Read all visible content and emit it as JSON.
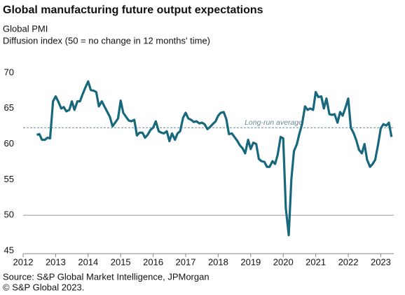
{
  "chart_data": {
    "type": "line",
    "title": "Global manufacturing future output expectations",
    "subtitle": [
      "Global  PMI",
      "Diffusion index (50 = no change in 12 months' time)"
    ],
    "source": [
      "Source: S&P Global Market Intelligence, JPMorgan",
      "© S&P Global 2023."
    ],
    "x": [
      2012.42,
      2012.5,
      2012.58,
      2012.67,
      2012.75,
      2012.83,
      2012.92,
      2013,
      2013.08,
      2013.17,
      2013.25,
      2013.33,
      2013.42,
      2013.5,
      2013.58,
      2013.67,
      2013.75,
      2013.83,
      2013.92,
      2014,
      2014.08,
      2014.17,
      2014.25,
      2014.33,
      2014.42,
      2014.5,
      2014.58,
      2014.67,
      2014.75,
      2014.83,
      2014.92,
      2015,
      2015.08,
      2015.17,
      2015.25,
      2015.33,
      2015.42,
      2015.5,
      2015.58,
      2015.67,
      2015.75,
      2015.83,
      2015.92,
      2016,
      2016.08,
      2016.17,
      2016.25,
      2016.33,
      2016.42,
      2016.5,
      2016.58,
      2016.67,
      2016.75,
      2016.83,
      2016.92,
      2017,
      2017.08,
      2017.17,
      2017.25,
      2017.33,
      2017.42,
      2017.5,
      2017.58,
      2017.67,
      2017.75,
      2017.83,
      2017.92,
      2018,
      2018.08,
      2018.17,
      2018.25,
      2018.33,
      2018.42,
      2018.5,
      2018.58,
      2018.67,
      2018.75,
      2018.83,
      2018.92,
      2019,
      2019.08,
      2019.17,
      2019.25,
      2019.33,
      2019.42,
      2019.5,
      2019.58,
      2019.67,
      2019.75,
      2019.83,
      2019.92,
      2020,
      2020.08,
      2020.17,
      2020.25,
      2020.33,
      2020.42,
      2020.5,
      2020.58,
      2020.67,
      2020.75,
      2020.83,
      2020.92,
      2021,
      2021.08,
      2021.17,
      2021.25,
      2021.33,
      2021.42,
      2021.5,
      2021.58,
      2021.67,
      2021.75,
      2021.83,
      2021.92,
      2022,
      2022.08,
      2022.17,
      2022.25,
      2022.33,
      2022.42,
      2022.5,
      2022.58,
      2022.67,
      2022.75,
      2022.83,
      2022.92,
      2023,
      2023.08,
      2023.17,
      2023.25,
      2023.33
    ],
    "series": [
      {
        "color": "#17687d",
        "values": [
          61.3,
          61.4,
          60.6,
          60.6,
          60.9,
          60.8,
          66.0,
          66.7,
          66.0,
          65.0,
          65.2,
          64.6,
          64.8,
          66.0,
          64.8,
          66.0,
          66.0,
          67.0,
          68.0,
          68.8,
          67.6,
          67.5,
          67.3,
          65.3,
          66.0,
          65.3,
          64.6,
          63.8,
          62.5,
          63.0,
          63.6,
          66.1,
          64.4,
          63.8,
          63.3,
          63.2,
          63.4,
          61.2,
          61.6,
          61.6,
          60.9,
          61.3,
          62.0,
          62.3,
          63.2,
          61.8,
          61.6,
          61.5,
          61.8,
          60.4,
          61.5,
          60.6,
          61.5,
          61.8,
          63.7,
          64.4,
          63.6,
          63.4,
          63.1,
          63.2,
          62.9,
          63.0,
          62.8,
          62.1,
          62.4,
          62.8,
          63.2,
          64.0,
          64.4,
          64.5,
          63.5,
          61.4,
          61.5,
          61.0,
          60.5,
          59.8,
          59.4,
          58.7,
          60.6,
          59.3,
          60.2,
          60.0,
          57.9,
          57.6,
          57.5,
          56.8,
          56.8,
          57.6,
          57.2,
          58.5,
          61.0,
          60.8,
          51.0,
          47.2,
          55.0,
          59.0,
          60.0,
          61.5,
          62.8,
          65.3,
          64.8,
          65.0,
          64.8,
          67.3,
          66.6,
          66.7,
          65.0,
          66.4,
          64.2,
          64.1,
          64.2,
          63.0,
          64.5,
          64.0,
          65.2,
          66.4,
          62.3,
          61.5,
          60.5,
          59.2,
          58.7,
          60.0,
          57.8,
          56.8,
          57.2,
          57.8,
          60.0,
          62.2,
          62.8,
          62.6,
          63.0,
          61.0
        ]
      }
    ],
    "average": {
      "label": "Long-run average",
      "value": 62.3,
      "color": "#5b93a5"
    },
    "reference_line": 50,
    "xlim": [
      2012,
      2023.4
    ],
    "xticks": [
      2012,
      2013,
      2014,
      2015,
      2016,
      2017,
      2018,
      2019,
      2020,
      2021,
      2022,
      2023
    ],
    "ylim": [
      45,
      70
    ],
    "yticks": [
      45,
      50,
      55,
      60,
      65,
      70
    ]
  }
}
